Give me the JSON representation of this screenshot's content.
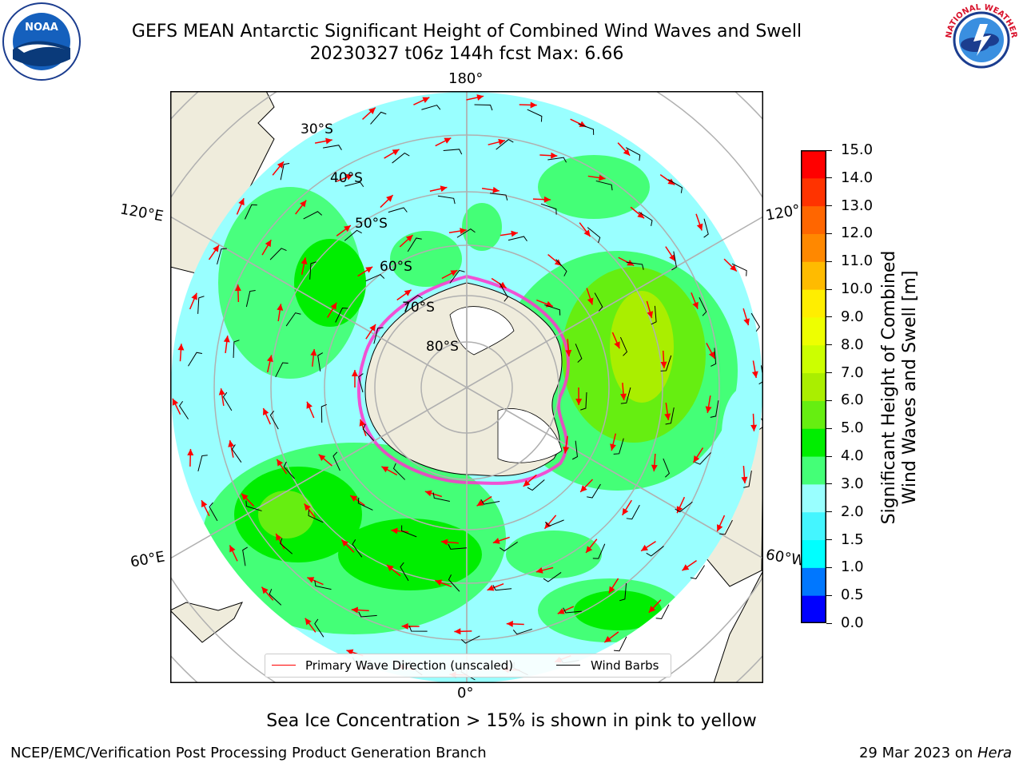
{
  "header": {
    "title_line1": "GEFS MEAN Antarctic Significant Height of Combined Wind Waves and Swell",
    "title_line2": "20230327 t06z 144h fcst   Max: 6.66"
  },
  "logos": {
    "left": "NOAA",
    "right": "NATIONAL WEATHER SERVICE"
  },
  "map": {
    "projection": "south-polar-stereographic",
    "lon_labels": {
      "top": "180°",
      "bottom": "0°",
      "left_upper": "120°E",
      "left_lower": "60°E",
      "right_upper": "120°",
      "right_lower": "60°W"
    },
    "lat_labels": [
      "30°S",
      "40°S",
      "50°S",
      "60°S",
      "70°S",
      "80°S"
    ],
    "colors": {
      "land": "#efecdc",
      "antarctica": "#efecdc",
      "ice_shelf": "#ffffff",
      "sea_ice_edge": "#ff33cc",
      "grid": "#b0b0b0",
      "arrow": "#ff0000",
      "barb": "#000000"
    }
  },
  "legend": {
    "items": [
      {
        "label": "Primary Wave Direction (unscaled)",
        "color": "#ff0000"
      },
      {
        "label": "Wind Barbs",
        "color": "#000000"
      }
    ]
  },
  "colorbar": {
    "title_line1": "Significant Height of Combined",
    "title_line2": "Wind Waves and Swell [m]",
    "ticks": [
      "0.0",
      "0.5",
      "1.0",
      "1.5",
      "2.0",
      "3.0",
      "4.0",
      "5.0",
      "6.0",
      "7.0",
      "8.0",
      "9.0",
      "10.0",
      "11.0",
      "12.0",
      "13.0",
      "14.0",
      "15.0"
    ],
    "colors": [
      "#0000ff",
      "#0077ff",
      "#00ffff",
      "#44f5ff",
      "#99ffff",
      "#44ff77",
      "#00ee00",
      "#66ee11",
      "#aaee00",
      "#ccff00",
      "#eeff00",
      "#ffee00",
      "#ffbb00",
      "#ff8800",
      "#ff6600",
      "#ff3300",
      "#ff0000"
    ]
  },
  "footer": {
    "ice_note": "Sea Ice Concentration > 15% is shown in pink to yellow",
    "left": "NCEP/EMC/Verification Post Processing Product Generation Branch",
    "right_date": "29 Mar 2023 on ",
    "right_host": "Hera"
  }
}
